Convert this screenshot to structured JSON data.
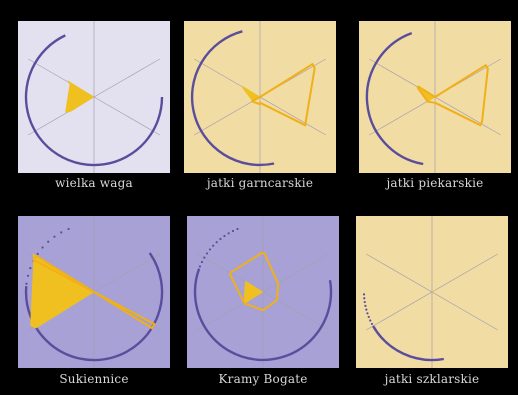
{
  "colors": {
    "background": "#000000",
    "caption": "#d8d8d8",
    "fill": "#f0c020",
    "outline": "#f0b018",
    "arc": "#5a4e9c",
    "axis": "#a6a0b0",
    "tile_lavender": "#e3e1f0",
    "tile_sand": "#f1dca4",
    "tile_purple": "#a7a1d6"
  },
  "panels": [
    {
      "label": "wielka waga",
      "bg": "tile_lavender",
      "solid": [
        [
          0.0,
          0.0
        ],
        [
          0.0,
          0.0
        ],
        [
          0.0,
          0.0
        ],
        [
          0.0,
          0.0
        ],
        [
          0.38,
          0.45
        ],
        [
          0.38,
          0.43
        ]
      ],
      "ring": null,
      "arc": {
        "start": 90,
        "end": 335
      },
      "dots": []
    },
    {
      "label": "jatki garncarskie",
      "bg": "tile_sand",
      "solid": [
        [
          0.0,
          0.0
        ],
        [
          0.0,
          0.0
        ],
        [
          0.0,
          0.0
        ],
        [
          0.0,
          0.0
        ],
        [
          0.12,
          0.12
        ],
        [
          0.28,
          0.27
        ]
      ],
      "ring": [
        [
          0.0,
          0.0
        ],
        [
          0.86,
          0.86
        ],
        [
          0.72,
          0.74
        ],
        [
          0.08,
          0.1
        ],
        [
          0.12,
          0.12
        ],
        [
          0.0,
          0.0
        ]
      ],
      "arc": {
        "start": 168,
        "end": 345
      },
      "dots": []
    },
    {
      "label": "jatki piekarskie",
      "bg": "tile_sand",
      "solid": [
        [
          0.0,
          0.0
        ],
        [
          0.0,
          0.0
        ],
        [
          0.0,
          0.0
        ],
        [
          0.0,
          0.0
        ],
        [
          0.12,
          0.12
        ],
        [
          0.23,
          0.22
        ]
      ],
      "ring": [
        [
          0.0,
          0.0
        ],
        [
          0.83,
          0.83
        ],
        [
          0.74,
          0.74
        ],
        [
          0.08,
          0.08
        ],
        [
          0.12,
          0.12
        ],
        [
          0.27,
          0.27
        ]
      ],
      "arc": {
        "start": 190,
        "end": 340
      },
      "dots": []
    },
    {
      "label": "Sukiennice",
      "bg": "tile_purple",
      "solid": [
        [
          0.0,
          0.0
        ],
        [
          0.0,
          0.0
        ],
        [
          0.0,
          0.0
        ],
        [
          0.0,
          0.0
        ],
        [
          0.95,
          1.0
        ],
        [
          0.95,
          1.0
        ]
      ],
      "ring": [
        [
          0.0,
          0.0
        ],
        [
          0.0,
          0.0
        ],
        [
          0.95,
          0.95
        ],
        [
          0.0,
          0.0
        ],
        [
          0.0,
          0.0
        ],
        [
          0.95,
          0.95
        ]
      ],
      "arc": {
        "start": 55,
        "end": 275
      },
      "dots": [
        {
          "start": 277,
          "end": 338,
          "count": 10
        }
      ]
    },
    {
      "label": "Kramy Bogate",
      "bg": "tile_purple",
      "solid": [
        [
          0.0,
          0.0
        ],
        [
          0.0,
          0.0
        ],
        [
          0.0,
          0.0
        ],
        [
          0.0,
          0.0
        ],
        [
          0.3,
          0.3
        ],
        [
          0.28,
          0.28
        ]
      ],
      "ring": [
        [
          0.54,
          0.54
        ],
        [
          0.24,
          0.24
        ],
        [
          0.22,
          0.22
        ],
        [
          0.25,
          0.25
        ],
        [
          0.3,
          0.3
        ],
        [
          0.52,
          0.52
        ]
      ],
      "arc": {
        "start": 80,
        "end": 290
      },
      "dots": [
        {
          "start": 292,
          "end": 338,
          "count": 12
        }
      ]
    },
    {
      "label": "jatki szklarskie",
      "bg": "tile_sand",
      "solid": [
        [
          0.0,
          0.0
        ],
        [
          0.05,
          0.05
        ],
        [
          0.0,
          0.0
        ],
        [
          0.0,
          0.0
        ],
        [
          0.0,
          0.0
        ],
        [
          0.0,
          0.0
        ]
      ],
      "ring": null,
      "arc": {
        "start": 170,
        "end": 240
      },
      "dots": [
        {
          "start": 242,
          "end": 268,
          "count": 9
        }
      ]
    }
  ]
}
